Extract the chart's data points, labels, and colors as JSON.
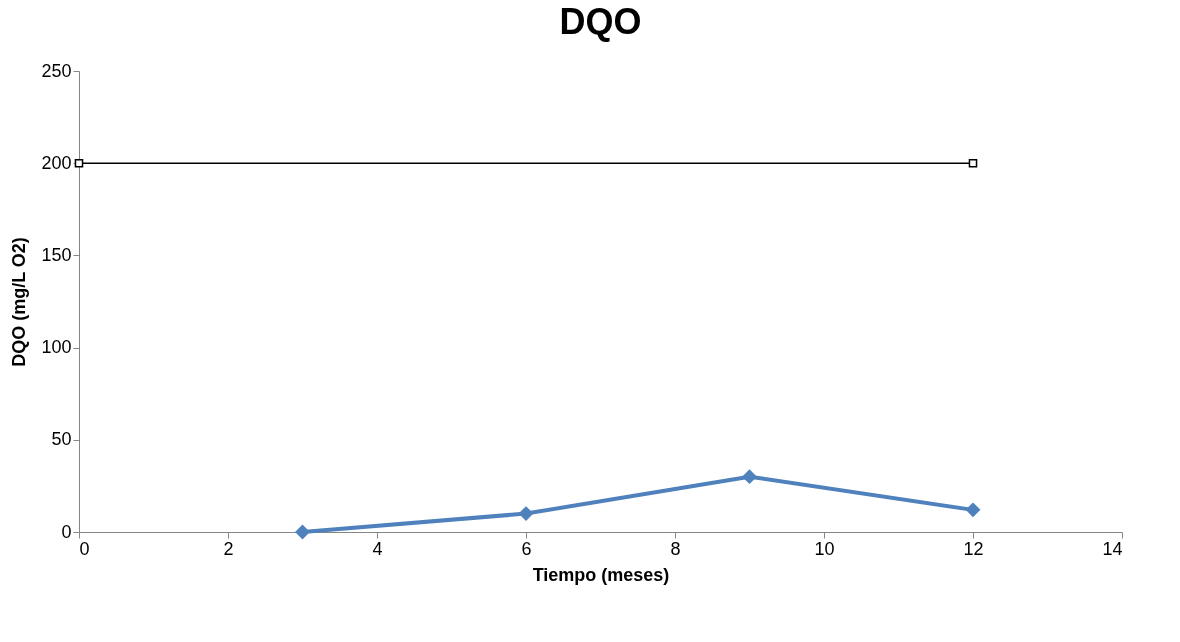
{
  "chart_data": {
    "type": "line",
    "title": "DQO",
    "xlabel": "Tiempo (meses)",
    "ylabel": "DQO (mg/L O2)",
    "xlim": [
      0,
      14
    ],
    "xticks": [
      0,
      2,
      4,
      6,
      8,
      10,
      12,
      14
    ],
    "ylim": [
      0,
      250
    ],
    "yticks": [
      0,
      50,
      100,
      150,
      200,
      250
    ],
    "grid": false,
    "series": [
      {
        "color": "#4f81bd",
        "x": [
          3,
          6,
          9,
          12
        ],
        "values": [
          0,
          10,
          30,
          12
        ],
        "marker": "diamond"
      },
      {
        "color": "#000000",
        "x": [
          0,
          12
        ],
        "values": [
          200,
          200
        ],
        "marker": "square"
      }
    ]
  }
}
